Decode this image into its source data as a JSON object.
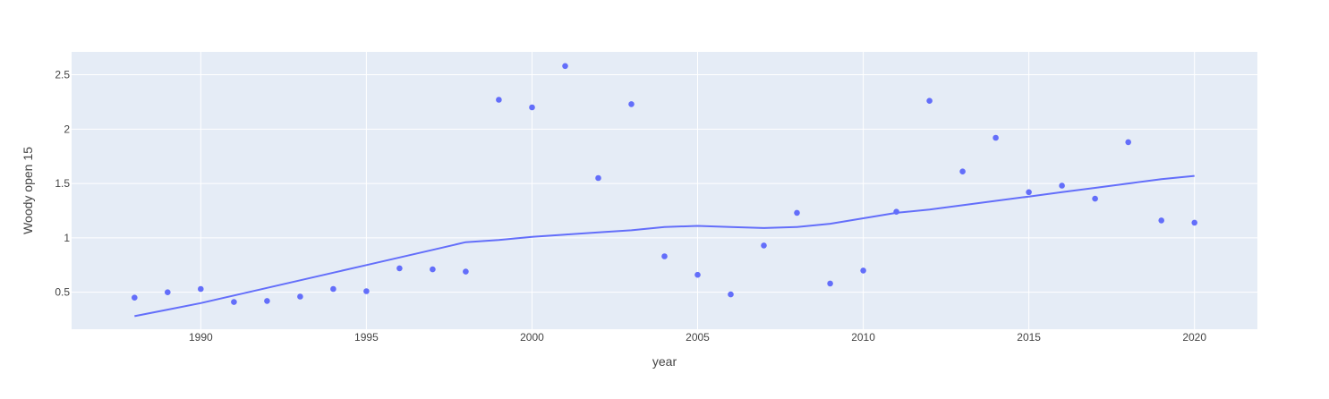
{
  "chart_data": {
    "type": "scatter",
    "title": "",
    "xlabel": "year",
    "ylabel": "Woody open 15",
    "xlim": [
      1986.1,
      2021.9
    ],
    "ylim": [
      0.16,
      2.71
    ],
    "x_ticks": [
      1990,
      1995,
      2000,
      2005,
      2010,
      2015,
      2020
    ],
    "y_ticks": [
      0.5,
      1,
      1.5,
      2,
      2.5
    ],
    "y_tick_labels": [
      "0.5",
      "1",
      "1.5",
      "2",
      "2.5"
    ],
    "grid": true,
    "legend": "none",
    "series": [
      {
        "mode": "markers",
        "x": [
          1988,
          1989,
          1990,
          1991,
          1992,
          1993,
          1994,
          1995,
          1996,
          1997,
          1998,
          1999,
          2000,
          2001,
          2002,
          2003,
          2004,
          2005,
          2006,
          2007,
          2008,
          2009,
          2010,
          2011,
          2012,
          2013,
          2014,
          2015,
          2016,
          2017,
          2018,
          2019,
          2020
        ],
        "y": [
          0.45,
          0.5,
          0.53,
          0.41,
          0.42,
          0.46,
          0.53,
          0.51,
          0.72,
          0.71,
          0.69,
          2.27,
          2.2,
          2.58,
          1.55,
          2.23,
          0.83,
          0.66,
          0.48,
          0.93,
          1.23,
          0.58,
          0.7,
          1.24,
          2.26,
          1.61,
          1.92,
          1.42,
          1.48,
          1.36,
          1.88,
          1.16,
          1.14
        ]
      },
      {
        "mode": "lines",
        "x": [
          1988,
          1989,
          1990,
          1991,
          1992,
          1993,
          1994,
          1995,
          1996,
          1997,
          1998,
          1999,
          2000,
          2001,
          2002,
          2003,
          2004,
          2005,
          2006,
          2007,
          2008,
          2009,
          2010,
          2011,
          2012,
          2013,
          2014,
          2015,
          2016,
          2017,
          2018,
          2019,
          2020
        ],
        "y": [
          0.28,
          0.34,
          0.4,
          0.47,
          0.54,
          0.61,
          0.68,
          0.75,
          0.82,
          0.89,
          0.96,
          0.98,
          1.01,
          1.03,
          1.05,
          1.07,
          1.1,
          1.11,
          1.1,
          1.09,
          1.1,
          1.13,
          1.18,
          1.23,
          1.26,
          1.3,
          1.34,
          1.38,
          1.42,
          1.46,
          1.5,
          1.54,
          1.57
        ]
      }
    ]
  },
  "colors": {
    "plot_background": "#e5ecf6",
    "grid": "#ffffff",
    "series": "#636efa",
    "text": "#444444"
  }
}
